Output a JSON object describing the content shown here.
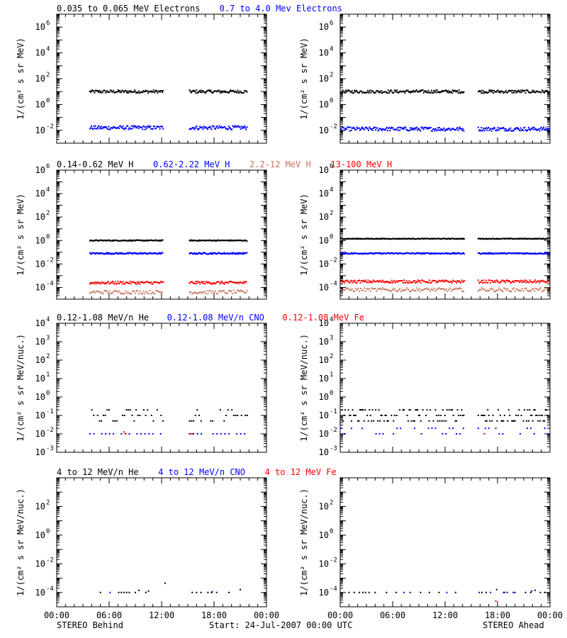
{
  "colors": {
    "black": "#000000",
    "blue": "#0000ff",
    "salmon": "#c8745c",
    "red": "#ff0000"
  },
  "footer": {
    "left": "STEREO Behind",
    "center": "Start: 24-Jul-2007 00:00 UTC",
    "right": "STEREO Ahead"
  },
  "x_ticks": [
    "00:00",
    "06:00",
    "12:00",
    "18:00",
    "00:00"
  ],
  "chart_data": [
    {
      "type": "scatter",
      "row": 1,
      "log_y": true,
      "ylim_exp": [
        -3,
        7
      ],
      "y_tick_exponents": [
        -2,
        0,
        2,
        4,
        6
      ],
      "ylabel": "1/(cm² s sr MeV)",
      "legend": [
        {
          "text": "0.035 to 0.065 MeV Electrons",
          "color": "black"
        },
        {
          "text": "0.7 to 4.0 Mev Electrons",
          "color": "blue"
        }
      ],
      "panels": [
        {
          "spacecraft": "STEREO Behind",
          "series": [
            {
              "name": "0.035 to 0.065 MeV Electrons",
              "color": "black",
              "exp": 1.0,
              "spread": 0.12,
              "segments": [
                [
                  3.8,
                  12.2
                ],
                [
                  15.2,
                  21.8
                ]
              ],
              "step": 0.09
            },
            {
              "name": "0.7 to 4.0 Mev Electrons",
              "color": "blue",
              "exp": -1.8,
              "spread": 0.15,
              "segments": [
                [
                  3.8,
                  12.2
                ],
                [
                  15.2,
                  21.8
                ]
              ],
              "step": 0.09
            }
          ]
        },
        {
          "spacecraft": "STEREO Ahead",
          "series": [
            {
              "name": "0.035 to 0.065 MeV Electrons",
              "color": "black",
              "exp": 1.0,
              "spread": 0.12,
              "segments": [
                [
                  0.1,
                  14.2
                ],
                [
                  15.8,
                  23.9
                ]
              ],
              "step": 0.09
            },
            {
              "name": "0.7 to 4.0 Mev Electrons",
              "color": "blue",
              "exp": -1.9,
              "spread": 0.15,
              "segments": [
                [
                  0.1,
                  14.2
                ],
                [
                  15.8,
                  23.9
                ]
              ],
              "step": 0.09
            }
          ]
        }
      ]
    },
    {
      "type": "scatter",
      "row": 2,
      "log_y": true,
      "ylim_exp": [
        -5,
        6
      ],
      "y_tick_exponents": [
        -4,
        -2,
        0,
        2,
        4,
        6
      ],
      "ylabel": "1/(cm² s sr MeV)",
      "legend": [
        {
          "text": "0.14-0.62 MeV H",
          "color": "black"
        },
        {
          "text": "0.62-2.22 MeV H",
          "color": "blue"
        },
        {
          "text": "2.2-12 MeV H",
          "color": "salmon"
        },
        {
          "text": "13-100 MeV H",
          "color": "red"
        }
      ],
      "panels": [
        {
          "spacecraft": "STEREO Behind",
          "series": [
            {
              "name": "0.14-0.62 MeV H",
              "color": "black",
              "exp": 0.0,
              "spread": 0.04,
              "segments": [
                [
                  3.8,
                  12.2
                ],
                [
                  15.2,
                  21.8
                ]
              ],
              "step": 0.08
            },
            {
              "name": "0.62-2.22 MeV H",
              "color": "blue",
              "exp": -1.1,
              "spread": 0.06,
              "segments": [
                [
                  3.8,
                  12.2
                ],
                [
                  15.2,
                  21.8
                ]
              ],
              "step": 0.08
            },
            {
              "name": "2.2-12 MeV H",
              "color": "salmon",
              "exp": -4.4,
              "spread": 0.15,
              "segments": [
                [
                  3.8,
                  12.2
                ],
                [
                  15.2,
                  21.8
                ]
              ],
              "step": 0.14
            },
            {
              "name": "13-100 MeV H",
              "color": "red",
              "exp": -3.6,
              "spread": 0.12,
              "segments": [
                [
                  3.8,
                  12.2
                ],
                [
                  15.2,
                  21.8
                ]
              ],
              "step": 0.1
            }
          ]
        },
        {
          "spacecraft": "STEREO Ahead",
          "series": [
            {
              "name": "0.14-0.62 MeV H",
              "color": "black",
              "exp": 0.15,
              "spread": 0.03,
              "segments": [
                [
                  0.1,
                  14.2
                ],
                [
                  15.8,
                  23.9
                ]
              ],
              "step": 0.08
            },
            {
              "name": "0.62-2.22 MeV H",
              "color": "blue",
              "exp": -1.1,
              "spread": 0.05,
              "segments": [
                [
                  0.1,
                  14.2
                ],
                [
                  15.8,
                  23.9
                ]
              ],
              "step": 0.08
            },
            {
              "name": "2.2-12 MeV H",
              "color": "salmon",
              "exp": -4.2,
              "spread": 0.15,
              "segments": [
                [
                  0.1,
                  14.2
                ],
                [
                  15.8,
                  23.9
                ]
              ],
              "step": 0.14
            },
            {
              "name": "13-100 MeV H",
              "color": "red",
              "exp": -3.5,
              "spread": 0.12,
              "segments": [
                [
                  0.1,
                  14.2
                ],
                [
                  15.8,
                  23.9
                ]
              ],
              "step": 0.1
            }
          ]
        }
      ]
    },
    {
      "type": "scatter",
      "row": 3,
      "log_y": true,
      "ylim_exp": [
        -3,
        4
      ],
      "y_tick_exponents": [
        -3,
        -2,
        -1,
        0,
        1,
        2,
        3,
        4
      ],
      "ylabel": "1/(cm² s sr MeV/nuc.)",
      "legend": [
        {
          "text": "0.12-1.08 MeV/n He",
          "color": "black"
        },
        {
          "text": "0.12-1.08 MeV/n CNO",
          "color": "blue"
        },
        {
          "text": "0.12-1.08 MeV Fe",
          "color": "red"
        }
      ],
      "panels": [
        {
          "spacecraft": "STEREO Behind",
          "series": [
            {
              "name": "0.12-1.08 MeV/n He",
              "color": "black",
              "levels": [
                -1.3,
                -1.0,
                -0.7
              ],
              "segments": [
                [
                  3.8,
                  12.2
                ],
                [
                  15.2,
                  21.8
                ]
              ],
              "step": 0.22
            },
            {
              "name": "0.12-1.08 MeV/n CNO",
              "color": "blue",
              "levels": [
                -2.0
              ],
              "segments": [
                [
                  3.8,
                  12.2
                ],
                [
                  15.2,
                  21.8
                ]
              ],
              "step": 0.45
            },
            {
              "name": "0.12-1.08 MeV Fe",
              "color": "red",
              "levels": [
                -2.0,
                -1.9
              ],
              "segments": [
                [
                  7.5,
                  8.0
                ],
                [
                  15.3,
                  15.6
                ]
              ],
              "step": 0.2
            }
          ]
        },
        {
          "spacecraft": "STEREO Ahead",
          "series": [
            {
              "name": "0.12-1.08 MeV/n He",
              "color": "black",
              "levels": [
                -1.3,
                -1.0,
                -0.7
              ],
              "segments": [
                [
                  0.1,
                  14.2
                ],
                [
                  15.8,
                  23.9
                ]
              ],
              "step": 0.12
            },
            {
              "name": "0.12-1.08 MeV/n CNO",
              "color": "blue",
              "levels": [
                -2.0,
                -1.7
              ],
              "segments": [
                [
                  0.1,
                  14.2
                ],
                [
                  15.8,
                  23.9
                ]
              ],
              "step": 0.4
            },
            {
              "name": "0.12-1.08 MeV Fe",
              "color": "red",
              "levels": [
                -2.0
              ],
              "segments": [
                [
                  16.5,
                  17.0
                ]
              ],
              "step": 0.3
            }
          ]
        }
      ]
    },
    {
      "type": "scatter",
      "row": 4,
      "log_y": true,
      "ylim_exp": [
        -5,
        4
      ],
      "y_tick_exponents": [
        -4,
        -2,
        0,
        2
      ],
      "ylabel": "1/(cm² s sr MeV/nuc.)",
      "legend": [
        {
          "text": "4 to 12 MeV/n He",
          "color": "black"
        },
        {
          "text": "4 to 12 MeV/n CNO",
          "color": "blue"
        },
        {
          "text": "4 to 12 MeV Fe",
          "color": "red"
        }
      ],
      "panels": [
        {
          "spacecraft": "STEREO Behind",
          "series": [
            {
              "name": "4 to 12 MeV/n He",
              "color": "black",
              "points": [
                [
                  5.0,
                  -4.0
                ],
                [
                  7.1,
                  -4.0
                ],
                [
                  7.4,
                  -4.0
                ],
                [
                  7.7,
                  -4.0
                ],
                [
                  8.0,
                  -4.0
                ],
                [
                  8.3,
                  -4.0
                ],
                [
                  9.0,
                  -4.0
                ],
                [
                  9.4,
                  -3.85
                ],
                [
                  10.2,
                  -4.0
                ],
                [
                  10.5,
                  -3.9
                ],
                [
                  12.4,
                  -3.35
                ],
                [
                  15.5,
                  -4.0
                ],
                [
                  16.0,
                  -4.0
                ],
                [
                  16.5,
                  -4.0
                ],
                [
                  17.3,
                  -4.0
                ],
                [
                  17.7,
                  -4.0
                ],
                [
                  18.3,
                  -4.0
                ],
                [
                  19.7,
                  -4.0
                ],
                [
                  21.0,
                  -3.8
                ]
              ]
            },
            {
              "name": "4 to 12 MeV/n CNO",
              "color": "blue",
              "points": [
                [
                  6.1,
                  -4.0
                ],
                [
                  17.8,
                  -3.95
                ]
              ]
            }
          ]
        },
        {
          "spacecraft": "STEREO Ahead",
          "series": [
            {
              "name": "4 to 12 MeV/n He",
              "color": "black",
              "points": [
                [
                  1.0,
                  -4.0
                ],
                [
                  1.6,
                  -4.0
                ],
                [
                  2.2,
                  -4.0
                ],
                [
                  2.6,
                  -4.0
                ],
                [
                  2.9,
                  -4.0
                ],
                [
                  3.3,
                  -4.0
                ],
                [
                  4.0,
                  -4.0
                ],
                [
                  5.3,
                  -4.0
                ],
                [
                  6.4,
                  -4.0
                ],
                [
                  8.0,
                  -4.0
                ],
                [
                  9.2,
                  -4.0
                ],
                [
                  10.2,
                  -4.0
                ],
                [
                  11.3,
                  -4.0
                ],
                [
                  13.2,
                  -4.0
                ],
                [
                  16.2,
                  -4.0
                ],
                [
                  16.7,
                  -4.0
                ],
                [
                  17.9,
                  -3.8
                ],
                [
                  18.7,
                  -4.0
                ],
                [
                  19.1,
                  -4.0
                ],
                [
                  20.0,
                  -4.0
                ],
                [
                  21.2,
                  -4.0
                ],
                [
                  21.8,
                  -4.0
                ],
                [
                  22.3,
                  -3.85
                ],
                [
                  22.9,
                  -4.0
                ],
                [
                  23.4,
                  -4.0
                ]
              ]
            },
            {
              "name": "4 to 12 MeV/n CNO",
              "color": "blue",
              "points": [
                [
                  7.3,
                  -4.0
                ],
                [
                  12.2,
                  -4.0
                ],
                [
                  15.9,
                  -4.0
                ],
                [
                  17.2,
                  -4.0
                ],
                [
                  18.8,
                  -4.0
                ],
                [
                  19.8,
                  -4.0
                ],
                [
                  21.9,
                  -3.9
                ]
              ]
            },
            {
              "name": "4 to 12 MeV Fe",
              "color": "red",
              "points": [
                [
                  17.8,
                  -4.6
                ]
              ]
            }
          ]
        }
      ]
    }
  ]
}
